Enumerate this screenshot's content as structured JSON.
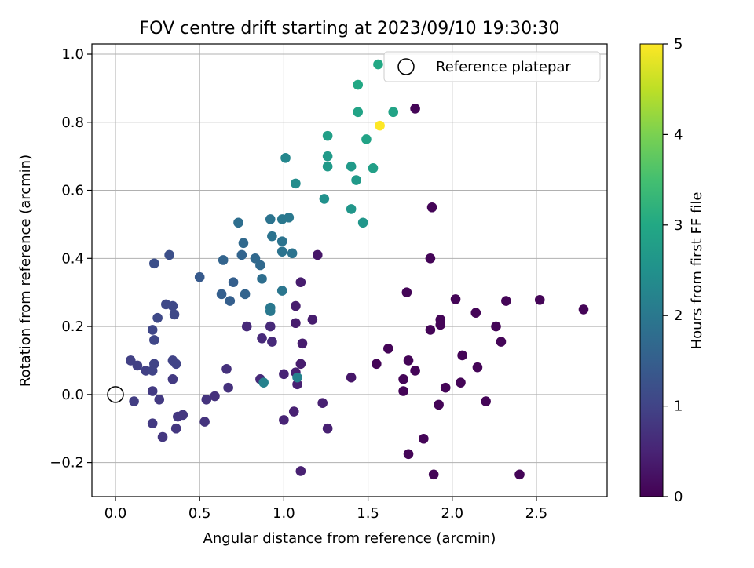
{
  "chart_data": {
    "type": "scatter",
    "title": "FOV centre drift starting at 2023/09/10 19:30:30",
    "xlabel": "Angular distance from reference (arcmin)",
    "ylabel": "Rotation from reference (arcmin)",
    "xlim": [
      -0.14,
      2.92
    ],
    "ylim": [
      -0.3,
      1.03
    ],
    "xticks": [
      "0.0",
      "0.5",
      "1.0",
      "1.5",
      "2.0",
      "2.5"
    ],
    "xtick_values": [
      0,
      0.5,
      1,
      1.5,
      2,
      2.5
    ],
    "yticks": [
      "−0.2",
      "0.0",
      "0.2",
      "0.4",
      "0.6",
      "0.8",
      "1.0"
    ],
    "ytick_values": [
      -0.2,
      0,
      0.2,
      0.4,
      0.6,
      0.8,
      1.0
    ],
    "grid": true,
    "legend": {
      "position": "top-right",
      "entries": [
        "Reference platepar"
      ]
    },
    "reference_point": {
      "x": 0,
      "y": 0,
      "label": "Reference platepar"
    },
    "colorbar": {
      "label": "Hours from first FF file",
      "min": 0,
      "max": 5,
      "ticks": [
        "0",
        "1",
        "2",
        "3",
        "4",
        "5"
      ],
      "tick_values": [
        0,
        1,
        2,
        3,
        4,
        5
      ],
      "colormap": "viridis"
    },
    "points": [
      {
        "x": 1.78,
        "y": 0.84,
        "c": 0.05
      },
      {
        "x": 1.88,
        "y": 0.55,
        "c": 0.05
      },
      {
        "x": 1.87,
        "y": 0.4,
        "c": 0.05
      },
      {
        "x": 1.73,
        "y": 0.3,
        "c": 0.05
      },
      {
        "x": 2.02,
        "y": 0.28,
        "c": 0.05
      },
      {
        "x": 2.32,
        "y": 0.275,
        "c": 0.05
      },
      {
        "x": 2.52,
        "y": 0.278,
        "c": 0.05
      },
      {
        "x": 2.78,
        "y": 0.25,
        "c": 0.05
      },
      {
        "x": 2.14,
        "y": 0.24,
        "c": 0.05
      },
      {
        "x": 1.93,
        "y": 0.22,
        "c": 0.05
      },
      {
        "x": 1.93,
        "y": 0.205,
        "c": 0.05
      },
      {
        "x": 2.26,
        "y": 0.2,
        "c": 0.05
      },
      {
        "x": 1.87,
        "y": 0.19,
        "c": 0.05
      },
      {
        "x": 2.29,
        "y": 0.155,
        "c": 0.05
      },
      {
        "x": 1.62,
        "y": 0.135,
        "c": 0.05
      },
      {
        "x": 2.06,
        "y": 0.115,
        "c": 0.05
      },
      {
        "x": 1.74,
        "y": 0.1,
        "c": 0.05
      },
      {
        "x": 1.55,
        "y": 0.09,
        "c": 0.05
      },
      {
        "x": 2.15,
        "y": 0.08,
        "c": 0.05
      },
      {
        "x": 1.78,
        "y": 0.07,
        "c": 0.05
      },
      {
        "x": 1.71,
        "y": 0.045,
        "c": 0.05
      },
      {
        "x": 2.05,
        "y": 0.035,
        "c": 0.05
      },
      {
        "x": 1.96,
        "y": 0.02,
        "c": 0.05
      },
      {
        "x": 1.71,
        "y": 0.01,
        "c": 0.05
      },
      {
        "x": 2.2,
        "y": -0.02,
        "c": 0.05
      },
      {
        "x": 1.92,
        "y": -0.03,
        "c": 0.05
      },
      {
        "x": 1.83,
        "y": -0.13,
        "c": 0.05
      },
      {
        "x": 1.74,
        "y": -0.175,
        "c": 0.05
      },
      {
        "x": 1.89,
        "y": -0.235,
        "c": 0.05
      },
      {
        "x": 2.4,
        "y": -0.235,
        "c": 0.05
      },
      {
        "x": 1.4,
        "y": 0.05,
        "c": 0.3
      },
      {
        "x": 1.2,
        "y": 0.41,
        "c": 0.3
      },
      {
        "x": 1.17,
        "y": 0.22,
        "c": 0.4
      },
      {
        "x": 1.1,
        "y": 0.33,
        "c": 0.4
      },
      {
        "x": 1.07,
        "y": 0.26,
        "c": 0.4
      },
      {
        "x": 1.07,
        "y": 0.21,
        "c": 0.4
      },
      {
        "x": 1.11,
        "y": 0.15,
        "c": 0.4
      },
      {
        "x": 1.1,
        "y": 0.09,
        "c": 0.4
      },
      {
        "x": 1.07,
        "y": 0.065,
        "c": 0.45
      },
      {
        "x": 1.08,
        "y": 0.03,
        "c": 0.45
      },
      {
        "x": 1.06,
        "y": -0.05,
        "c": 0.45
      },
      {
        "x": 1.23,
        "y": -0.025,
        "c": 0.45
      },
      {
        "x": 1.26,
        "y": -0.1,
        "c": 0.45
      },
      {
        "x": 1.1,
        "y": -0.225,
        "c": 0.45
      },
      {
        "x": 1.0,
        "y": -0.075,
        "c": 0.5
      },
      {
        "x": 1.0,
        "y": 0.06,
        "c": 0.5
      },
      {
        "x": 0.93,
        "y": 0.155,
        "c": 0.6
      },
      {
        "x": 0.87,
        "y": 0.165,
        "c": 0.6
      },
      {
        "x": 0.92,
        "y": 0.2,
        "c": 0.6
      },
      {
        "x": 0.78,
        "y": 0.2,
        "c": 0.6
      },
      {
        "x": 0.86,
        "y": 0.045,
        "c": 0.6
      },
      {
        "x": 0.66,
        "y": 0.075,
        "c": 0.7
      },
      {
        "x": 0.67,
        "y": 0.02,
        "c": 0.7
      },
      {
        "x": 0.59,
        "y": -0.005,
        "c": 0.7
      },
      {
        "x": 0.54,
        "y": -0.015,
        "c": 0.75
      },
      {
        "x": 0.53,
        "y": -0.08,
        "c": 0.75
      },
      {
        "x": 0.4,
        "y": -0.06,
        "c": 0.8
      },
      {
        "x": 0.37,
        "y": -0.065,
        "c": 0.8
      },
      {
        "x": 0.36,
        "y": -0.1,
        "c": 0.8
      },
      {
        "x": 0.28,
        "y": -0.125,
        "c": 0.8
      },
      {
        "x": 0.22,
        "y": -0.085,
        "c": 0.85
      },
      {
        "x": 0.26,
        "y": -0.015,
        "c": 0.85
      },
      {
        "x": 0.22,
        "y": 0.01,
        "c": 0.85
      },
      {
        "x": 0.34,
        "y": 0.045,
        "c": 0.85
      },
      {
        "x": 0.11,
        "y": -0.02,
        "c": 0.9
      },
      {
        "x": 0.09,
        "y": 0.1,
        "c": 0.95
      },
      {
        "x": 0.13,
        "y": 0.085,
        "c": 0.95
      },
      {
        "x": 0.18,
        "y": 0.07,
        "c": 0.95
      },
      {
        "x": 0.22,
        "y": 0.07,
        "c": 1.0
      },
      {
        "x": 0.23,
        "y": 0.09,
        "c": 1.0
      },
      {
        "x": 0.34,
        "y": 0.1,
        "c": 1.0
      },
      {
        "x": 0.36,
        "y": 0.09,
        "c": 1.0
      },
      {
        "x": 0.23,
        "y": 0.16,
        "c": 1.05
      },
      {
        "x": 0.22,
        "y": 0.19,
        "c": 1.05
      },
      {
        "x": 0.25,
        "y": 0.225,
        "c": 1.1
      },
      {
        "x": 0.35,
        "y": 0.235,
        "c": 1.1
      },
      {
        "x": 0.3,
        "y": 0.265,
        "c": 1.1
      },
      {
        "x": 0.34,
        "y": 0.26,
        "c": 1.1
      },
      {
        "x": 0.23,
        "y": 0.385,
        "c": 1.2
      },
      {
        "x": 0.32,
        "y": 0.41,
        "c": 1.2
      },
      {
        "x": 0.5,
        "y": 0.345,
        "c": 1.4
      },
      {
        "x": 0.63,
        "y": 0.295,
        "c": 1.5
      },
      {
        "x": 0.68,
        "y": 0.275,
        "c": 1.5
      },
      {
        "x": 0.7,
        "y": 0.33,
        "c": 1.5
      },
      {
        "x": 0.64,
        "y": 0.395,
        "c": 1.6
      },
      {
        "x": 0.75,
        "y": 0.41,
        "c": 1.6
      },
      {
        "x": 0.77,
        "y": 0.295,
        "c": 1.6
      },
      {
        "x": 0.76,
        "y": 0.445,
        "c": 1.7
      },
      {
        "x": 0.83,
        "y": 0.4,
        "c": 1.7
      },
      {
        "x": 0.86,
        "y": 0.38,
        "c": 1.7
      },
      {
        "x": 0.87,
        "y": 0.34,
        "c": 1.8
      },
      {
        "x": 0.73,
        "y": 0.505,
        "c": 1.8
      },
      {
        "x": 0.92,
        "y": 0.515,
        "c": 1.9
      },
      {
        "x": 0.93,
        "y": 0.465,
        "c": 1.9
      },
      {
        "x": 0.99,
        "y": 0.45,
        "c": 1.9
      },
      {
        "x": 0.99,
        "y": 0.42,
        "c": 1.9
      },
      {
        "x": 1.05,
        "y": 0.415,
        "c": 1.9
      },
      {
        "x": 0.99,
        "y": 0.305,
        "c": 1.95
      },
      {
        "x": 0.92,
        "y": 0.255,
        "c": 2.0
      },
      {
        "x": 0.92,
        "y": 0.245,
        "c": 2.0
      },
      {
        "x": 0.99,
        "y": 0.515,
        "c": 2.0
      },
      {
        "x": 1.03,
        "y": 0.52,
        "c": 2.0
      },
      {
        "x": 0.88,
        "y": 0.035,
        "c": 2.2
      },
      {
        "x": 1.08,
        "y": 0.05,
        "c": 2.2
      },
      {
        "x": 1.01,
        "y": 0.695,
        "c": 2.3
      },
      {
        "x": 1.07,
        "y": 0.62,
        "c": 2.4
      },
      {
        "x": 1.24,
        "y": 0.575,
        "c": 2.5
      },
      {
        "x": 1.4,
        "y": 0.545,
        "c": 2.6
      },
      {
        "x": 1.47,
        "y": 0.505,
        "c": 2.6
      },
      {
        "x": 1.26,
        "y": 0.67,
        "c": 2.7
      },
      {
        "x": 1.26,
        "y": 0.7,
        "c": 2.7
      },
      {
        "x": 1.4,
        "y": 0.67,
        "c": 2.7
      },
      {
        "x": 1.43,
        "y": 0.63,
        "c": 2.7
      },
      {
        "x": 1.53,
        "y": 0.665,
        "c": 2.8
      },
      {
        "x": 1.26,
        "y": 0.76,
        "c": 2.8
      },
      {
        "x": 1.49,
        "y": 0.75,
        "c": 2.9
      },
      {
        "x": 1.44,
        "y": 0.83,
        "c": 2.9
      },
      {
        "x": 1.65,
        "y": 0.83,
        "c": 2.9
      },
      {
        "x": 1.44,
        "y": 0.91,
        "c": 3.0
      },
      {
        "x": 1.56,
        "y": 0.97,
        "c": 3.0
      },
      {
        "x": 1.57,
        "y": 0.79,
        "c": 5.0
      }
    ]
  }
}
